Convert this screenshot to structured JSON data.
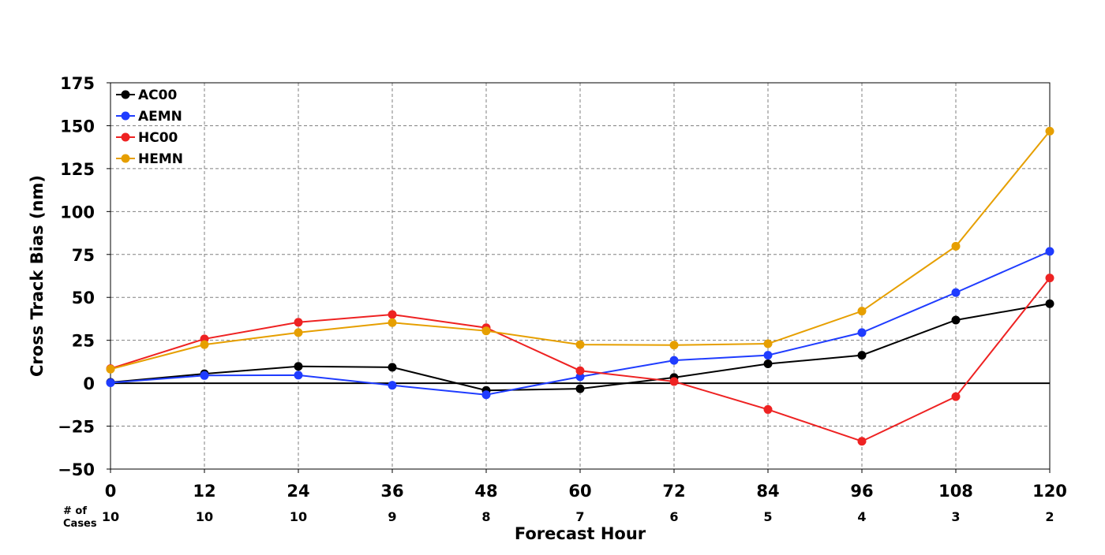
{
  "chart_data": {
    "type": "line",
    "title": "",
    "xlabel": "Forecast Hour",
    "ylabel": "Cross Track Bias (nm)",
    "x": [
      0,
      12,
      24,
      36,
      48,
      60,
      72,
      84,
      96,
      108,
      120
    ],
    "xlim": [
      0,
      120
    ],
    "ylim": [
      -50,
      175
    ],
    "yticks": [
      -50,
      -25,
      0,
      25,
      50,
      75,
      100,
      125,
      150,
      175
    ],
    "ytick_labels": [
      "−50",
      "−25",
      "0",
      "25",
      "50",
      "75",
      "100",
      "125",
      "150",
      "175"
    ],
    "grid": true,
    "zero_line": true,
    "legend_position": "top-left",
    "cases_label": "# of\nCases",
    "cases_label_lines": [
      "# of",
      "Cases"
    ],
    "cases": [
      10,
      10,
      10,
      9,
      8,
      7,
      6,
      5,
      4,
      3,
      2
    ],
    "series": [
      {
        "name": "AC00",
        "color": "#000000",
        "values": [
          0.5,
          5.5,
          9.8,
          9.3,
          -4.2,
          -3.2,
          3.3,
          11.3,
          16.3,
          36.8,
          46.3
        ]
      },
      {
        "name": "AEMN",
        "color": "#1f3cff",
        "values": [
          0.3,
          4.5,
          4.7,
          -1.2,
          -6.7,
          3.8,
          13.3,
          16.3,
          29.5,
          52.8,
          76.8
        ]
      },
      {
        "name": "HC00",
        "color": "#ee2222",
        "values": [
          8.5,
          25.8,
          35.5,
          40.0,
          32.3,
          7.3,
          1.0,
          -15.3,
          -33.8,
          -7.8,
          61.3
        ]
      },
      {
        "name": "HEMN",
        "color": "#e69f00",
        "values": [
          8.2,
          22.5,
          29.5,
          35.3,
          30.5,
          22.5,
          22.2,
          23.0,
          42.0,
          79.8,
          146.8
        ]
      }
    ]
  }
}
